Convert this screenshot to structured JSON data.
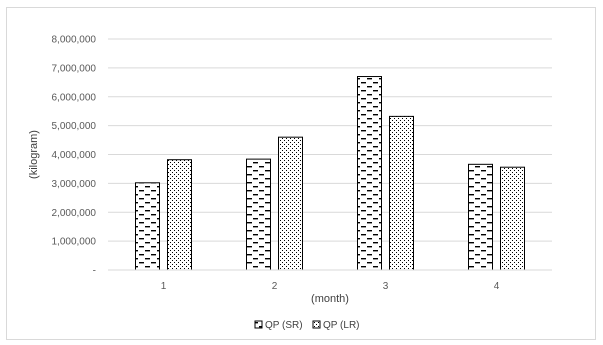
{
  "chart_data": {
    "type": "bar",
    "categories": [
      "1",
      "2",
      "3",
      "4"
    ],
    "series": [
      {
        "name": "QP (SR)",
        "values": [
          3020000,
          3840000,
          6700000,
          3660000
        ],
        "pattern": "dash"
      },
      {
        "name": "QP (LR)",
        "values": [
          3820000,
          4600000,
          5320000,
          3560000
        ],
        "pattern": "dot"
      }
    ],
    "xlabel": "(month)",
    "ylabel": "(kilogram)",
    "ylim": [
      0,
      8000000
    ],
    "yticks": [
      0,
      1000000,
      2000000,
      3000000,
      4000000,
      5000000,
      6000000,
      7000000,
      8000000
    ],
    "ytick_labels": [
      "-",
      "1,000,000",
      "2,000,000",
      "3,000,000",
      "4,000,000",
      "5,000,000",
      "6,000,000",
      "7,000,000",
      "8,000,000"
    ],
    "grid": true,
    "legend": "bottom",
    "colors": {
      "bar_fill": "#ffffff",
      "bar_stroke": "#000000",
      "pattern": "#000000",
      "grid": "#d9d9d9"
    }
  }
}
